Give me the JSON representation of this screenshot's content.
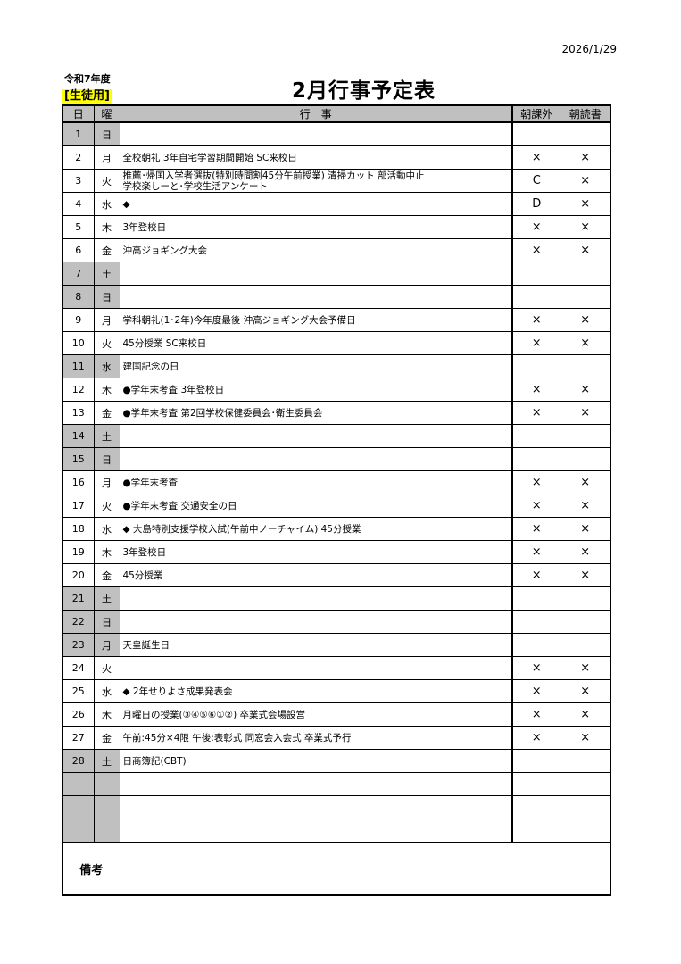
{
  "print_date": "2026/1/29",
  "fiscal_year": "令和7年度",
  "audience": "[生徒用]",
  "title": "2月行事予定表",
  "colors": {
    "holiday_fill": "#c0c0c0",
    "audience_highlight": "#ffff00"
  },
  "headers": {
    "day": "日",
    "weekday": "曜",
    "event": "行　事",
    "morning_extra": "朝課外",
    "morning_reading": "朝読書"
  },
  "rows": [
    {
      "day": "1",
      "weekday": "日",
      "event": "",
      "extra": "",
      "reading": "",
      "holiday": true
    },
    {
      "day": "2",
      "weekday": "月",
      "event": "全校朝礼  3年自宅学習期間開始  SC来校日",
      "extra": "×",
      "reading": "×",
      "holiday": false
    },
    {
      "day": "3",
      "weekday": "火",
      "event": "推薦･帰国入学者選抜(特別時間割45分午前授業)  清掃カット  部活動中止\n学校楽しーと･学校生活アンケート",
      "extra": "C",
      "reading": "×",
      "holiday": false
    },
    {
      "day": "4",
      "weekday": "水",
      "event": "◆",
      "extra": "D",
      "reading": "×",
      "holiday": false
    },
    {
      "day": "5",
      "weekday": "木",
      "event": "3年登校日",
      "extra": "×",
      "reading": "×",
      "holiday": false
    },
    {
      "day": "6",
      "weekday": "金",
      "event": "沖高ジョギング大会",
      "extra": "×",
      "reading": "×",
      "holiday": false
    },
    {
      "day": "7",
      "weekday": "土",
      "event": "",
      "extra": "",
      "reading": "",
      "holiday": true
    },
    {
      "day": "8",
      "weekday": "日",
      "event": "",
      "extra": "",
      "reading": "",
      "holiday": true
    },
    {
      "day": "9",
      "weekday": "月",
      "event": "学科朝礼(1･2年)今年度最後  沖高ジョギング大会予備日",
      "extra": "×",
      "reading": "×",
      "holiday": false
    },
    {
      "day": "10",
      "weekday": "火",
      "event": "45分授業  SC来校日",
      "extra": "×",
      "reading": "×",
      "holiday": false
    },
    {
      "day": "11",
      "weekday": "水",
      "event": "建国記念の日",
      "extra": "",
      "reading": "",
      "holiday": true
    },
    {
      "day": "12",
      "weekday": "木",
      "event": "●学年末考査  3年登校日",
      "extra": "×",
      "reading": "×",
      "holiday": false
    },
    {
      "day": "13",
      "weekday": "金",
      "event": "●学年末考査  第2回学校保健委員会･衛生委員会",
      "extra": "×",
      "reading": "×",
      "holiday": false
    },
    {
      "day": "14",
      "weekday": "土",
      "event": "",
      "extra": "",
      "reading": "",
      "holiday": true
    },
    {
      "day": "15",
      "weekday": "日",
      "event": "",
      "extra": "",
      "reading": "",
      "holiday": true
    },
    {
      "day": "16",
      "weekday": "月",
      "event": "●学年末考査",
      "extra": "×",
      "reading": "×",
      "holiday": false
    },
    {
      "day": "17",
      "weekday": "火",
      "event": "●学年末考査  交通安全の日",
      "extra": "×",
      "reading": "×",
      "holiday": false
    },
    {
      "day": "18",
      "weekday": "水",
      "event": "◆  大島特別支援学校入試(午前中ノーチャイム)  45分授業",
      "extra": "×",
      "reading": "×",
      "holiday": false
    },
    {
      "day": "19",
      "weekday": "木",
      "event": "3年登校日",
      "extra": "×",
      "reading": "×",
      "holiday": false
    },
    {
      "day": "20",
      "weekday": "金",
      "event": "45分授業",
      "extra": "×",
      "reading": "×",
      "holiday": false
    },
    {
      "day": "21",
      "weekday": "土",
      "event": "",
      "extra": "",
      "reading": "",
      "holiday": true
    },
    {
      "day": "22",
      "weekday": "日",
      "event": "",
      "extra": "",
      "reading": "",
      "holiday": true
    },
    {
      "day": "23",
      "weekday": "月",
      "event": "天皇誕生日",
      "extra": "",
      "reading": "",
      "holiday": true
    },
    {
      "day": "24",
      "weekday": "火",
      "event": "",
      "extra": "×",
      "reading": "×",
      "holiday": false
    },
    {
      "day": "25",
      "weekday": "水",
      "event": "◆  2年せりよさ成果発表会",
      "extra": "×",
      "reading": "×",
      "holiday": false
    },
    {
      "day": "26",
      "weekday": "木",
      "event": "月曜日の授業(③④⑤⑥①②)  卒業式会場設営",
      "extra": "×",
      "reading": "×",
      "holiday": false
    },
    {
      "day": "27",
      "weekday": "金",
      "event": "午前:45分×4限  午後:表彰式 同窓会入会式 卒業式予行",
      "extra": "×",
      "reading": "×",
      "holiday": false
    },
    {
      "day": "28",
      "weekday": "土",
      "event": "日商簿記(CBT)",
      "extra": "",
      "reading": "",
      "holiday": true
    },
    {
      "day": "",
      "weekday": "",
      "event": "",
      "extra": "",
      "reading": "",
      "holiday": true
    },
    {
      "day": "",
      "weekday": "",
      "event": "",
      "extra": "",
      "reading": "",
      "holiday": true
    },
    {
      "day": "",
      "weekday": "",
      "event": "",
      "extra": "",
      "reading": "",
      "holiday": true
    }
  ],
  "notes": {
    "label": "備考",
    "content": ""
  }
}
